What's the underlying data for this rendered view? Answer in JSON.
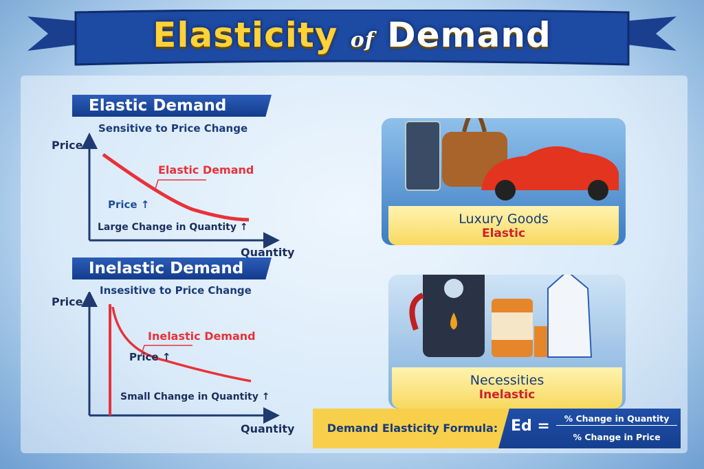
{
  "title": {
    "main": "Elasticity",
    "of": "of",
    "end": "Demand"
  },
  "elastic": {
    "heading": "Elastic Demand",
    "subtitle": "Sensitive to Price Change",
    "y_axis": "Price",
    "x_axis": "Quantity",
    "curve_label": "Elastic Demand",
    "price_note": "Price ↑",
    "quantity_note": "Large Change in Quantity ↑"
  },
  "inelastic": {
    "heading": "Inelastic Demand",
    "subtitle": "Insesitive to Price Change",
    "y_axis": "Price",
    "x_axis": "Quantity",
    "curve_label": "Inelastic Demand",
    "price_note": "Price ↑",
    "quantity_note": "Small Change in Quantity ↑"
  },
  "luxury": {
    "title": "Luxury Goods",
    "tag": "Elastic"
  },
  "necessities": {
    "title": "Necessities",
    "tag": "Inelastic"
  },
  "formula": {
    "label": "Demand Elasticity Formula:",
    "lhs": "Ed =",
    "numerator": "% Change in Quantity",
    "denominator": "% Change in Price"
  },
  "colors": {
    "navy": "#143c8c",
    "red": "#e8323a",
    "yellow": "#f8cf4a"
  }
}
